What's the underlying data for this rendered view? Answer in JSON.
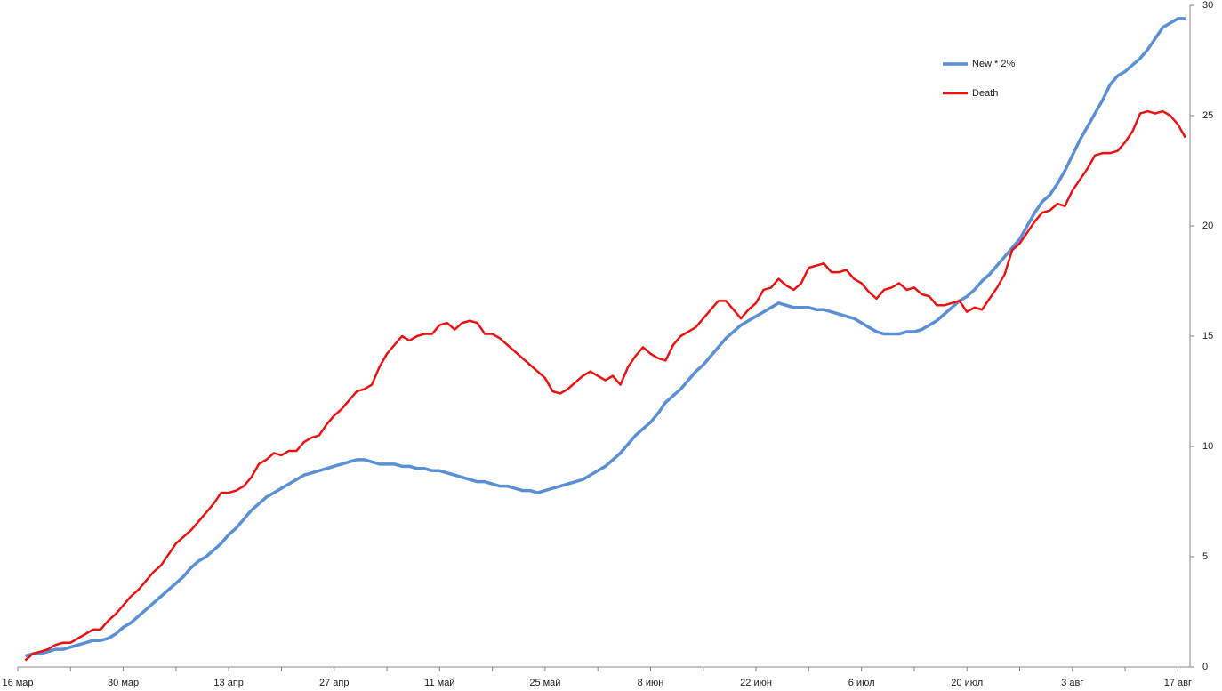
{
  "chart_data": {
    "type": "line",
    "categories": [
      "16 мар",
      null,
      null,
      null,
      null,
      null,
      null,
      null,
      null,
      null,
      null,
      null,
      null,
      null,
      "30 мар",
      null,
      null,
      null,
      null,
      null,
      null,
      null,
      null,
      null,
      null,
      null,
      null,
      null,
      "13 апр",
      null,
      null,
      null,
      null,
      null,
      null,
      null,
      null,
      null,
      null,
      null,
      null,
      null,
      "27 апр",
      null,
      null,
      null,
      null,
      null,
      null,
      null,
      null,
      null,
      null,
      null,
      null,
      null,
      "11 май",
      null,
      null,
      null,
      null,
      null,
      null,
      null,
      null,
      null,
      null,
      null,
      null,
      null,
      "25 май",
      null,
      null,
      null,
      null,
      null,
      null,
      null,
      null,
      null,
      null,
      null,
      null,
      null,
      "8 июн",
      null,
      null,
      null,
      null,
      null,
      null,
      null,
      null,
      null,
      null,
      null,
      null,
      null,
      "22 июн",
      null,
      null,
      null,
      null,
      null,
      null,
      null,
      null,
      null,
      null,
      null,
      null,
      null,
      "6 июл",
      null,
      null,
      null,
      null,
      null,
      null,
      null,
      null,
      null,
      null,
      null,
      null,
      null,
      "20 июл",
      null,
      null,
      null,
      null,
      null,
      null,
      null,
      null,
      null,
      null,
      null,
      null,
      null,
      "3 авг",
      null,
      null,
      null,
      null,
      null,
      null,
      null,
      null,
      null,
      null,
      null,
      null,
      null,
      "17 авг",
      null
    ],
    "series": [
      {
        "name": "New * 2%",
        "color": "#5b8fd6",
        "values": [
          null,
          0.5,
          0.6,
          0.6,
          0.7,
          0.8,
          0.8,
          0.9,
          1.0,
          1.1,
          1.2,
          1.2,
          1.3,
          1.5,
          1.8,
          2.0,
          2.3,
          2.6,
          2.9,
          3.2,
          3.5,
          3.8,
          4.1,
          4.5,
          4.8,
          5.0,
          5.3,
          5.6,
          6.0,
          6.3,
          6.7,
          7.1,
          7.4,
          7.7,
          7.9,
          8.1,
          8.3,
          8.5,
          8.7,
          8.8,
          8.9,
          9.0,
          9.1,
          9.2,
          9.3,
          9.4,
          9.4,
          9.3,
          9.2,
          9.2,
          9.2,
          9.1,
          9.1,
          9.0,
          9.0,
          8.9,
          8.9,
          8.8,
          8.7,
          8.6,
          8.5,
          8.4,
          8.4,
          8.3,
          8.2,
          8.2,
          8.1,
          8.0,
          8.0,
          7.9,
          8.0,
          8.1,
          8.2,
          8.3,
          8.4,
          8.5,
          8.7,
          8.9,
          9.1,
          9.4,
          9.7,
          10.1,
          10.5,
          10.8,
          11.1,
          11.5,
          12.0,
          12.3,
          12.6,
          13.0,
          13.4,
          13.7,
          14.1,
          14.5,
          14.9,
          15.2,
          15.5,
          15.7,
          15.9,
          16.1,
          16.3,
          16.5,
          16.4,
          16.3,
          16.3,
          16.3,
          16.2,
          16.2,
          16.1,
          16.0,
          15.9,
          15.8,
          15.6,
          15.4,
          15.2,
          15.1,
          15.1,
          15.1,
          15.2,
          15.2,
          15.3,
          15.5,
          15.7,
          16.0,
          16.3,
          16.6,
          16.8,
          17.1,
          17.5,
          17.8,
          18.2,
          18.6,
          19.0,
          19.4,
          20.0,
          20.6,
          21.1,
          21.4,
          21.9,
          22.5,
          23.2,
          23.9,
          24.5,
          25.1,
          25.7,
          26.4,
          26.8,
          27.0,
          27.3,
          27.6,
          28.0,
          28.5,
          29.0,
          29.2,
          29.4,
          29.4
        ]
      },
      {
        "name": "Death",
        "color": "#ee1111",
        "values": [
          null,
          0.3,
          0.6,
          0.7,
          0.8,
          1.0,
          1.1,
          1.1,
          1.3,
          1.5,
          1.7,
          1.7,
          2.1,
          2.4,
          2.8,
          3.2,
          3.5,
          3.9,
          4.3,
          4.6,
          5.1,
          5.6,
          5.9,
          6.2,
          6.6,
          7.0,
          7.4,
          7.9,
          7.9,
          8.0,
          8.2,
          8.6,
          9.2,
          9.4,
          9.7,
          9.6,
          9.8,
          9.8,
          10.2,
          10.4,
          10.5,
          11.0,
          11.4,
          11.7,
          12.1,
          12.5,
          12.6,
          12.8,
          13.6,
          14.2,
          14.6,
          15.0,
          14.8,
          15.0,
          15.1,
          15.1,
          15.5,
          15.6,
          15.3,
          15.6,
          15.7,
          15.6,
          15.1,
          15.1,
          14.9,
          14.6,
          14.3,
          14.0,
          13.7,
          13.4,
          13.1,
          12.5,
          12.4,
          12.6,
          12.9,
          13.2,
          13.4,
          13.2,
          13.0,
          13.2,
          12.8,
          13.6,
          14.1,
          14.5,
          14.2,
          14.0,
          13.9,
          14.6,
          15.0,
          15.2,
          15.4,
          15.8,
          16.2,
          16.6,
          16.6,
          16.2,
          15.8,
          16.2,
          16.5,
          17.1,
          17.2,
          17.6,
          17.3,
          17.1,
          17.4,
          18.1,
          18.2,
          18.3,
          17.9,
          17.9,
          18.0,
          17.6,
          17.4,
          17.0,
          16.7,
          17.1,
          17.2,
          17.4,
          17.1,
          17.2,
          16.9,
          16.8,
          16.4,
          16.4,
          16.5,
          16.6,
          16.1,
          16.3,
          16.2,
          16.7,
          17.2,
          17.8,
          18.9,
          19.2,
          19.7,
          20.2,
          20.6,
          20.7,
          21.0,
          20.9,
          21.6,
          22.1,
          22.6,
          23.2,
          23.3,
          23.3,
          23.4,
          23.8,
          24.3,
          25.1,
          25.2,
          25.1,
          25.2,
          25.0,
          24.6,
          24.0
        ]
      }
    ],
    "ylim": [
      0,
      30
    ],
    "yticks": [
      0,
      5,
      10,
      15,
      20,
      25,
      30
    ],
    "y_axis_side": "right",
    "grid": false,
    "legend": "top-right"
  }
}
